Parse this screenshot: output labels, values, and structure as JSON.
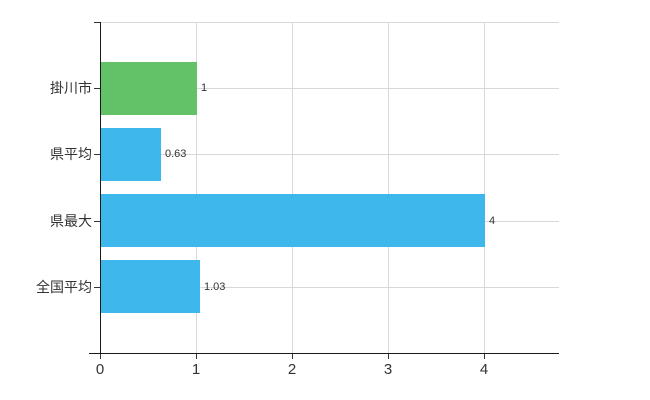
{
  "chart_data": {
    "type": "bar",
    "orientation": "horizontal",
    "title": "",
    "xlabel": "",
    "ylabel": "",
    "categories": [
      "掛川市",
      "県平均",
      "県最大",
      "全国平均"
    ],
    "values": [
      1,
      0.63,
      4,
      1.03
    ],
    "value_labels": [
      "1",
      "0.63",
      "4",
      "1.03"
    ],
    "bar_colors": [
      "#63c168",
      "#3db7ec",
      "#3db7ec",
      "#3db7ec"
    ],
    "xlim": [
      0,
      4.78
    ],
    "xticks": [
      "0",
      "1",
      "2",
      "3",
      "4"
    ],
    "grid": true,
    "legend": false
  },
  "colors": {
    "background": "#ffffff",
    "grid": "#d8d8d8",
    "axis": "#1a1a1a",
    "tick": "#333333",
    "text": "#333333",
    "bar_green": "#63c168",
    "bar_blue": "#3db7ec"
  }
}
